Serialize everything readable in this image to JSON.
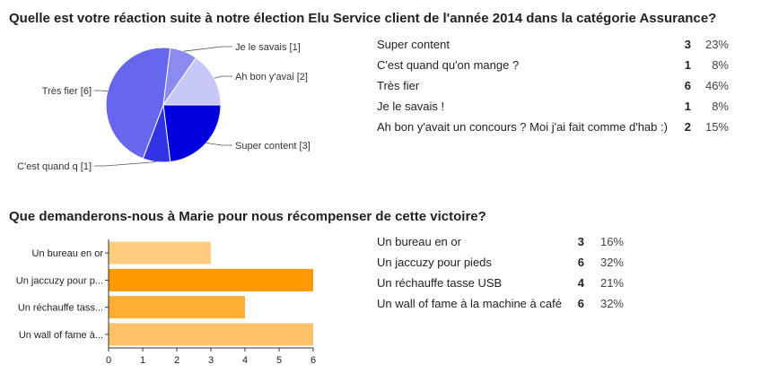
{
  "survey": {
    "question_1": {
      "title": "Quelle est votre réaction suite à notre élection Elu Service client de l'année 2014 dans la catégorie Assurance?",
      "pie_labels": [
        "Super content [3]",
        "C'est quand q [1]",
        "Très fier [6]",
        "Je le savais  [1]",
        "Ah bon y'avai [2]"
      ],
      "summary": [
        {
          "label": "Super content",
          "count": "3",
          "percent": "23%"
        },
        {
          "label": "C'est quand qu'on mange ?",
          "count": "1",
          "percent": "8%"
        },
        {
          "label": "Très fier",
          "count": "6",
          "percent": "46%"
        },
        {
          "label": "Je le savais !",
          "count": "1",
          "percent": "8%"
        },
        {
          "label": "Ah bon y'avait un concours ? Moi j'ai fait comme d'hab :)",
          "count": "2",
          "percent": "15%"
        }
      ]
    },
    "question_2": {
      "title": "Que demanderons-nous à Marie pour nous récompenser de cette victoire?",
      "bar_labels": [
        "Un bureau en or",
        "Un jaccuzy pour p...",
        "Un réchauffe tass...",
        "Un wall of fame à..."
      ],
      "summary": [
        {
          "label": "Un bureau en or",
          "count": "3",
          "percent": "16%"
        },
        {
          "label": "Un jaccuzy pour pieds",
          "count": "6",
          "percent": "32%"
        },
        {
          "label": "Un réchauffe tasse USB",
          "count": "4",
          "percent": "21%"
        },
        {
          "label": "Un wall of fame à la machine à café",
          "count": "6",
          "percent": "32%"
        }
      ]
    }
  },
  "chart_data": [
    {
      "type": "pie",
      "categories": [
        "Super content",
        "C'est quand qu'on mange ?",
        "Très fier",
        "Je le savais !",
        "Ah bon y'avait un concours ? Moi j'ai fait comme d'hab :)"
      ],
      "values": [
        3,
        1,
        6,
        1,
        2
      ],
      "colors": [
        "#0000dd",
        "#3333e6",
        "#6666ee",
        "#8a8af0",
        "#c8c8f6"
      ],
      "start_angle_deg": 90,
      "direction": "clockwise",
      "title": "Quelle est votre réaction suite à notre élection Elu Service client de l'année 2014 dans la catégorie Assurance?"
    },
    {
      "type": "bar",
      "orientation": "horizontal",
      "categories": [
        "Un bureau en or",
        "Un jaccuzy pour pieds",
        "Un réchauffe tasse USB",
        "Un wall of fame à la machine à café"
      ],
      "values": [
        3,
        6,
        4,
        6
      ],
      "colors": [
        "#ffcc80",
        "#ff9900",
        "#ffad33",
        "#ffc266"
      ],
      "xlim": [
        0,
        6
      ],
      "xticks": [
        0,
        1,
        2,
        3,
        4,
        5,
        6
      ],
      "grid": false,
      "title": "Que demanderons-nous à Marie pour nous récompenser de cette victoire?"
    }
  ]
}
